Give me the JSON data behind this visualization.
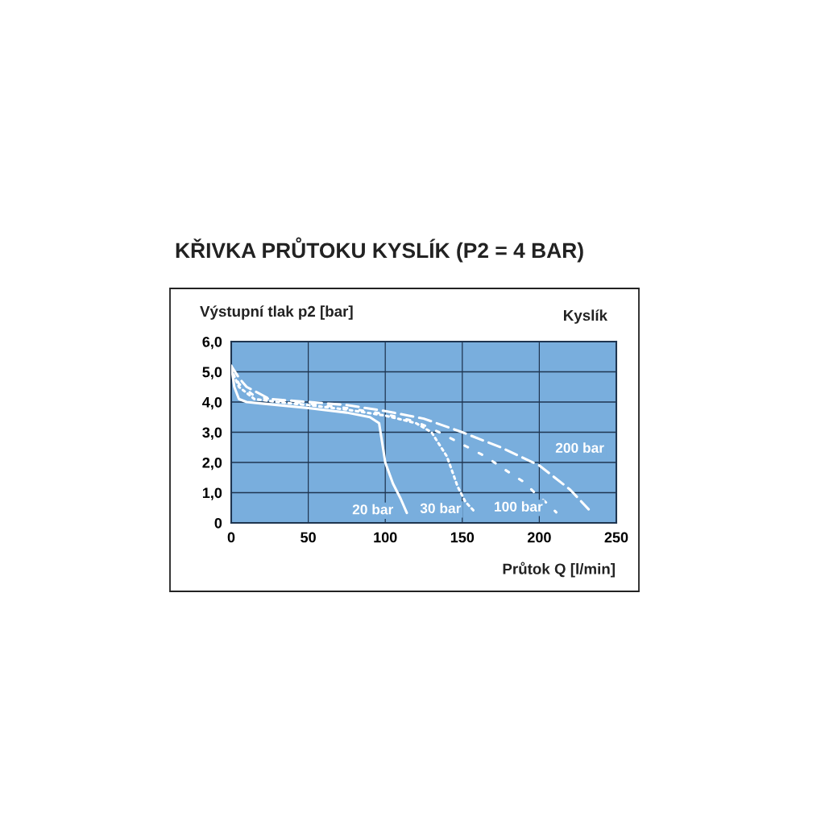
{
  "chart_data": {
    "type": "line",
    "title": "KŘIVKA PRŮTOKU KYSLÍK (P2 = 4 BAR)",
    "ylabel": "Výstupní tlak p2 [bar]",
    "xlabel": "Průtok Q [l/min]",
    "annotations": [
      "Kyslík"
    ],
    "xlim": [
      0,
      250
    ],
    "xticks": [
      0,
      50,
      100,
      150,
      200,
      250
    ],
    "ylim": [
      0,
      6
    ],
    "yticks": [
      0,
      {
        "value": 1,
        "label": "1,0"
      },
      {
        "value": 2,
        "label": "2,0"
      },
      {
        "value": 3,
        "label": "3,0"
      },
      {
        "value": 4,
        "label": "4,0"
      },
      {
        "value": 5,
        "label": "5,0"
      },
      {
        "value": 6,
        "label": "6,0"
      }
    ],
    "grid": true,
    "legend": false,
    "marker": "none",
    "series": [
      {
        "name": "20 bar",
        "color": "#ffffff",
        "line_style": "solid",
        "x": [
          0,
          2,
          5,
          10,
          20,
          50,
          75,
          90,
          96,
          100,
          105,
          110,
          114
        ],
        "values": [
          5.2,
          4.5,
          4.1,
          4.0,
          3.95,
          3.8,
          3.65,
          3.5,
          3.3,
          2.0,
          1.3,
          0.8,
          0.33
        ]
      },
      {
        "name": "30 bar",
        "color": "#ffffff",
        "line_style": "dotted",
        "x": [
          0,
          5,
          15,
          30,
          50,
          75,
          100,
          120,
          130,
          140,
          147,
          152,
          158
        ],
        "values": [
          5.1,
          4.5,
          4.1,
          4.0,
          3.9,
          3.75,
          3.55,
          3.3,
          3.0,
          2.2,
          1.2,
          0.7,
          0.37
        ]
      },
      {
        "name": "100 bar",
        "color": "#ffffff",
        "line_style": "dashdot",
        "x": [
          0,
          5,
          15,
          30,
          50,
          75,
          100,
          120,
          135,
          150,
          165,
          178,
          190,
          198,
          205,
          211
        ],
        "values": [
          5.15,
          4.6,
          4.2,
          4.05,
          3.95,
          3.8,
          3.6,
          3.35,
          3.0,
          2.6,
          2.2,
          1.75,
          1.35,
          0.95,
          0.65,
          0.35
        ]
      },
      {
        "name": "200 bar",
        "color": "#ffffff",
        "line_style": "dashed",
        "x": [
          0,
          5,
          10,
          25,
          50,
          75,
          100,
          125,
          150,
          175,
          200,
          210,
          220,
          232
        ],
        "values": [
          5.2,
          4.8,
          4.5,
          4.1,
          4.0,
          3.9,
          3.7,
          3.45,
          3.0,
          2.5,
          1.9,
          1.5,
          1.1,
          0.45
        ]
      }
    ]
  }
}
